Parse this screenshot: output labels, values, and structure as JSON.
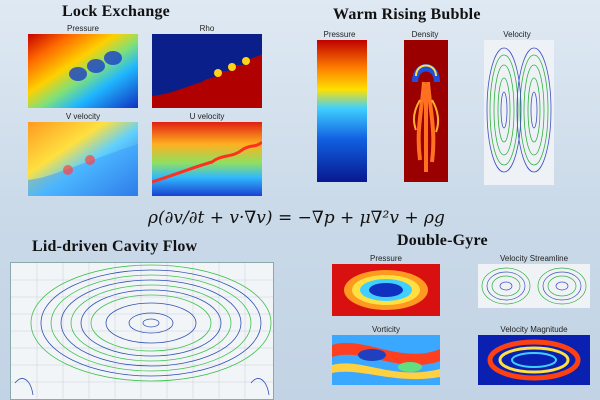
{
  "sections": {
    "lock_exchange": {
      "title": "Lock Exchange",
      "panels": [
        "Pressure",
        "Rho",
        "V velocity",
        "U velocity"
      ]
    },
    "warm_rising_bubble": {
      "title": "Warm Rising Bubble",
      "panels": [
        "Pressure",
        "Density",
        "Velocity"
      ]
    },
    "lid_driven_cavity": {
      "title": "Lid-driven Cavity Flow"
    },
    "double_gyre": {
      "title": "Double-Gyre",
      "panels": [
        "Pressure",
        "Velocity Streamline",
        "Vorticity",
        "Velocity Magnitude"
      ]
    }
  },
  "equation": "ρ(∂v/∂t + v·∇v) = −∇p + μ∇²v + ρg"
}
